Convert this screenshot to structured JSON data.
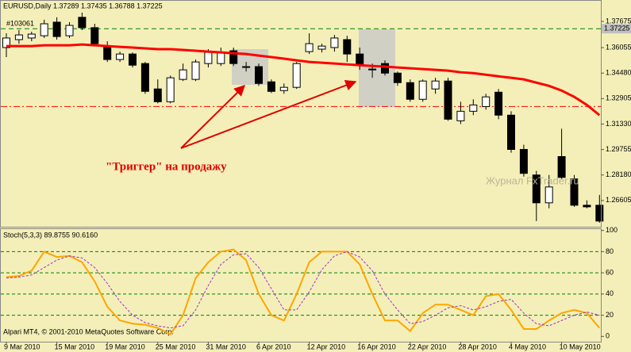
{
  "chart_data": [
    {
      "type": "candlestick",
      "title": "EURUSD,Daily  1.37289 1.37435 1.36788 1.37225",
      "account": "#103061",
      "annotation": "\"Триггер\" на продажу",
      "watermark": "Журнал FxTrader.ru",
      "categories": [
        "9 Mar 2010",
        null,
        null,
        null,
        "15 Mar 2010",
        null,
        null,
        null,
        "19 Mar 2010",
        null,
        null,
        null,
        "25 Mar 2010",
        null,
        null,
        null,
        "31 Mar 2010",
        null,
        null,
        null,
        "6 Apr 2010",
        null,
        null,
        null,
        "12 Apr 2010",
        null,
        null,
        null,
        "16 Apr 2010",
        null,
        null,
        null,
        "22 Apr 2010",
        null,
        null,
        null,
        "28 Apr 2010",
        null,
        null,
        null,
        "4 May 2010",
        null,
        null,
        null,
        "10 May 2010",
        null,
        null,
        null
      ],
      "open": [
        1.3606,
        1.3655,
        1.3665,
        1.3679,
        1.3763,
        1.3679,
        1.3793,
        1.3729,
        1.3615,
        1.3532,
        1.3566,
        1.3507,
        1.335,
        1.3271,
        1.3409,
        1.3409,
        1.3507,
        1.3507,
        1.3586,
        1.3483,
        1.3488,
        1.3394,
        1.334,
        1.336,
        1.3581,
        1.3596,
        1.3606,
        1.3655,
        1.3566,
        1.3468,
        1.3507,
        1.3448,
        1.3389,
        1.3286,
        1.335,
        1.3399,
        1.3153,
        1.3212,
        1.3241,
        1.333,
        1.3188,
        1.2976,
        1.2818,
        1.2646,
        1.2932,
        1.2794,
        1.2631,
        1.2631
      ],
      "high": [
        1.3694,
        1.3714,
        1.3704,
        1.3778,
        1.3793,
        1.3763,
        1.3822,
        1.3753,
        1.3645,
        1.3581,
        1.3576,
        1.3517,
        1.3409,
        1.3433,
        1.3507,
        1.3532,
        1.3596,
        1.3606,
        1.3606,
        1.3517,
        1.3507,
        1.3409,
        1.3384,
        1.3517,
        1.3694,
        1.363,
        1.3684,
        1.3679,
        1.3606,
        1.3507,
        1.3527,
        1.3458,
        1.3409,
        1.3409,
        1.3419,
        1.3419,
        1.3271,
        1.3286,
        1.332,
        1.335,
        1.3212,
        1.3005,
        1.2843,
        1.2818,
        1.3104,
        1.2818,
        1.2661,
        1.2695
      ],
      "low": [
        1.3547,
        1.363,
        1.3645,
        1.3665,
        1.3655,
        1.3665,
        1.3714,
        1.3615,
        1.3517,
        1.3517,
        1.3483,
        1.332,
        1.3261,
        1.3261,
        1.3399,
        1.3399,
        1.3483,
        1.3492,
        1.3492,
        1.3458,
        1.3369,
        1.3325,
        1.332,
        1.335,
        1.3566,
        1.3576,
        1.3581,
        1.3517,
        1.3468,
        1.3419,
        1.3433,
        1.3369,
        1.3271,
        1.3271,
        1.332,
        1.3153,
        1.3133,
        1.3188,
        1.3222,
        1.3163,
        1.2956,
        1.2808,
        1.2533,
        1.2612,
        1.2794,
        1.2621,
        1.2612,
        1.2523
      ],
      "close": [
        1.3665,
        1.3684,
        1.3689,
        1.3753,
        1.3674,
        1.3743,
        1.3729,
        1.363,
        1.3532,
        1.3566,
        1.3497,
        1.3335,
        1.3271,
        1.3419,
        1.3468,
        1.3517,
        1.3576,
        1.3576,
        1.3507,
        1.3488,
        1.3384,
        1.3335,
        1.336,
        1.3507,
        1.363,
        1.3615,
        1.3665,
        1.3566,
        1.3497,
        1.3473,
        1.3448,
        1.3389,
        1.3286,
        1.3399,
        1.3399,
        1.3163,
        1.3212,
        1.3251,
        1.3301,
        1.3188,
        1.2976,
        1.2828,
        1.2646,
        1.2744,
        1.2803,
        1.2631,
        1.2621,
        1.2533
      ],
      "up_color": "#ffffff",
      "down_color": "#000000",
      "ma": {
        "color": "#ff0000",
        "values": [
          1.3615,
          1.3615,
          1.3615,
          1.362,
          1.362,
          1.362,
          1.3625,
          1.362,
          1.3615,
          1.361,
          1.3606,
          1.3601,
          1.3596,
          1.3596,
          1.3591,
          1.3586,
          1.3581,
          1.3576,
          1.3571,
          1.3566,
          1.3556,
          1.3547,
          1.3537,
          1.3527,
          1.3517,
          1.3512,
          1.3507,
          1.3502,
          1.3497,
          1.3492,
          1.3488,
          1.3483,
          1.3478,
          1.3473,
          1.3468,
          1.3463,
          1.3453,
          1.3448,
          1.3438,
          1.3428,
          1.3419,
          1.3409,
          1.3389,
          1.3369,
          1.334,
          1.3301,
          1.3251,
          1.3188
        ]
      },
      "levels": [
        {
          "value": 1.37225,
          "color": "#008000"
        },
        {
          "value": 1.3241,
          "color": "#ff0000"
        }
      ],
      "current": 1.37225,
      "ylim": [
        1.2498,
        1.39
      ],
      "yticks": [
        1.37675,
        1.36055,
        {
          "value": 1.3448,
          "label": "1.34480"
        },
        1.32905,
        {
          "value": 1.3133,
          "label": "1.31330"
        },
        1.29755,
        {
          "value": 1.2818,
          "label": "1.28180"
        },
        1.26605
      ]
    },
    {
      "type": "line",
      "title": "Stoch(5,3,3) 89.8755 90.6160",
      "footer": "Alpari MT4, © 2001-2010 MetaQuotes Software Corp.",
      "series": [
        {
          "color": "#ffa500",
          "values": [
            56,
            57,
            62,
            80,
            75,
            76,
            70,
            52,
            28,
            15,
            12,
            11,
            8,
            2,
            20,
            55,
            70,
            80,
            82,
            72,
            40,
            20,
            15,
            40,
            70,
            80,
            80,
            80,
            68,
            40,
            15,
            15,
            5,
            22,
            30,
            30,
            25,
            20,
            38,
            40,
            25,
            7,
            7,
            15,
            22,
            25,
            22,
            8
          ]
        },
        {
          "color": "#9932cc",
          "dashed": true,
          "values": [
            55,
            56,
            58,
            65,
            72,
            76,
            74,
            65,
            50,
            33,
            20,
            13,
            10,
            8,
            10,
            25,
            48,
            68,
            77,
            78,
            65,
            45,
            25,
            25,
            42,
            63,
            76,
            80,
            75,
            62,
            40,
            25,
            12,
            14,
            20,
            27,
            29,
            25,
            28,
            33,
            35,
            22,
            12,
            10,
            15,
            20,
            23,
            20
          ]
        }
      ],
      "levels": [
        20,
        40,
        60,
        80
      ],
      "level_color": "#008000",
      "ylim": [
        -5,
        102
      ],
      "yticks": [
        0,
        20,
        40,
        60,
        80,
        100
      ]
    }
  ]
}
